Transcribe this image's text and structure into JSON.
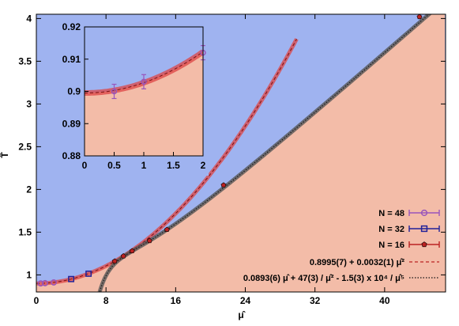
{
  "chart_data": {
    "type": "scatter",
    "xlabel": "μ̂",
    "ylabel": "T̂",
    "xlim": [
      0,
      47
    ],
    "ylim": [
      0.8,
      4.05
    ],
    "x_ticks": [
      "0",
      "8",
      "16",
      "24",
      "32",
      "40"
    ],
    "y_ticks": [
      "1",
      "1.5",
      "2",
      "2.5",
      "3",
      "3.5",
      "4"
    ],
    "colors": {
      "upper_region": "#9fb3f0",
      "lower_region": "#f3bca8",
      "n48": "#9955bb",
      "n32": "#222299",
      "n16": "#bb2222",
      "fit_fill": "#dd4444",
      "asym_fill": "#555555"
    },
    "legend": {
      "placement": "bottom-right",
      "entries": [
        {
          "label": "N = 48",
          "marker": "circle"
        },
        {
          "label": "N = 32",
          "marker": "square"
        },
        {
          "label": "N = 16",
          "marker": "pentagon"
        },
        {
          "label": "0.8995(7) + 0.0032(1) μ̂²",
          "style": "dashed-red"
        },
        {
          "label": "0.0893(6) μ̂ + 47(3) / μ̂² - 1.5(3) x 10⁴ / μ̂⁵",
          "style": "dotted-black"
        }
      ]
    },
    "series": [
      {
        "name": "N = 48",
        "marker": "circle",
        "points": [
          [
            0.5,
            0.9
          ],
          [
            1,
            0.903
          ],
          [
            2,
            0.912
          ]
        ]
      },
      {
        "name": "N = 32",
        "marker": "square",
        "points": [
          [
            4,
            0.951
          ],
          [
            6,
            1.014
          ]
        ]
      },
      {
        "name": "N = 16",
        "marker": "pentagon",
        "points": [
          [
            9,
            1.16
          ],
          [
            10,
            1.22
          ],
          [
            11,
            1.28
          ],
          [
            13,
            1.4
          ],
          [
            15,
            1.53
          ],
          [
            21.5,
            2.05
          ],
          [
            44,
            4.02
          ]
        ]
      }
    ],
    "inset": {
      "xlim": [
        0,
        2
      ],
      "ylim": [
        0.88,
        0.92
      ],
      "x_ticks": [
        "0",
        "0.5",
        "1",
        "1.5",
        "2"
      ],
      "y_ticks": [
        "0.88",
        "0.89",
        "0.9",
        "0.91",
        "0.92"
      ],
      "points": [
        [
          0.5,
          0.9
        ],
        [
          1,
          0.903
        ],
        [
          2,
          0.912
        ]
      ]
    }
  }
}
